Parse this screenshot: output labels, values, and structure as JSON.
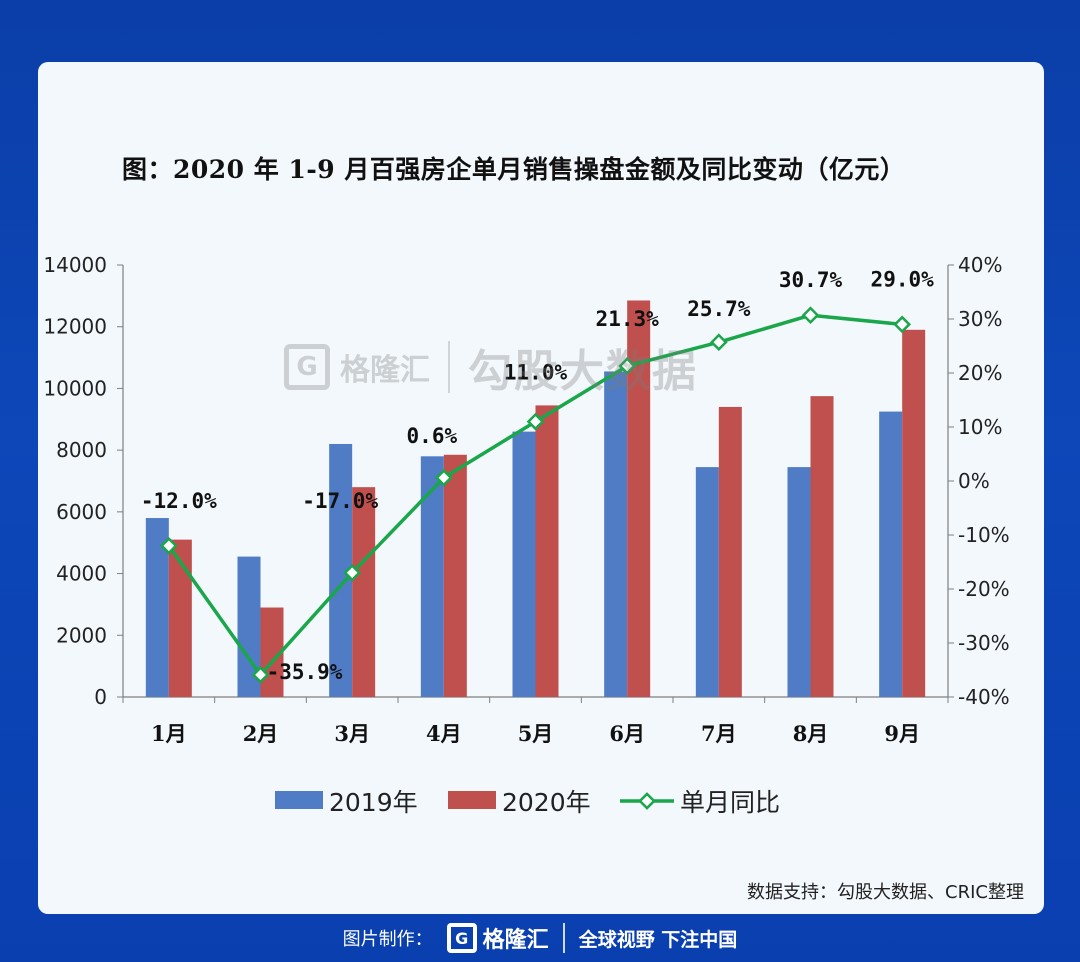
{
  "chart_data": {
    "type": "bar",
    "title": "图：2020 年 1-9 月百强房企单月销售操盘金额及同比变动（亿元）",
    "categories": [
      "1月",
      "2月",
      "3月",
      "4月",
      "5月",
      "6月",
      "7月",
      "8月",
      "9月"
    ],
    "series": [
      {
        "name": "2019年",
        "type": "bar",
        "color": "#4f7cc4",
        "values": [
          5800,
          4550,
          8200,
          7800,
          8600,
          10550,
          7450,
          7450,
          9250
        ]
      },
      {
        "name": "2020年",
        "type": "bar",
        "color": "#c0504d",
        "values": [
          5100,
          2900,
          6800,
          7850,
          9450,
          12850,
          9400,
          9750,
          11900
        ]
      },
      {
        "name": "单月同比",
        "type": "line",
        "axis": "right",
        "color": "#1aa64a",
        "values": [
          -12.0,
          -35.9,
          -17.0,
          0.6,
          11.0,
          21.3,
          25.7,
          30.7,
          29.0
        ],
        "labels": [
          "-12.0%",
          "-35.9%",
          "-17.0%",
          "0.6%",
          "11.0%",
          "21.3%",
          "25.7%",
          "30.7%",
          "29.0%"
        ]
      }
    ],
    "y_left": {
      "min": 0,
      "max": 14000,
      "ticks": [
        "0",
        "2000",
        "4000",
        "6000",
        "8000",
        "10000",
        "12000",
        "14000"
      ]
    },
    "y_right": {
      "min": -40,
      "max": 40,
      "ticks": [
        "-40%",
        "-30%",
        "-20%",
        "-10%",
        "0%",
        "10%",
        "20%",
        "30%",
        "40%"
      ]
    },
    "legend_position": "bottom",
    "grid": false
  },
  "watermark": {
    "brand": "格隆汇",
    "product": "勾股大数据"
  },
  "source_note": "数据支持：勾股大数据、CRIC整理",
  "footer": {
    "label": "图片制作：",
    "brand": "格隆汇",
    "slogan": "全球视野 下注中国"
  }
}
